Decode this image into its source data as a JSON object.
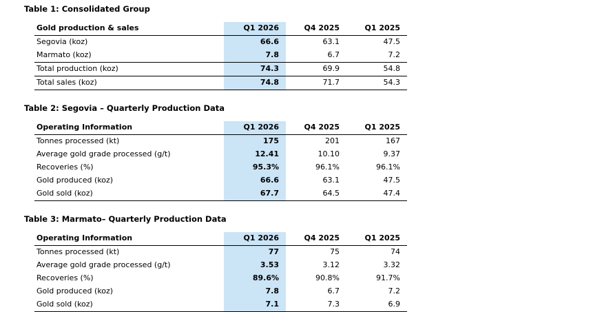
{
  "page": {
    "background": "#ffffff",
    "highlight_color": "#cbe4f6"
  },
  "tables": [
    {
      "title": "Table 1: Consolidated Group",
      "columns": [
        "Gold production & sales",
        "Q1 2026",
        "Q4 2025",
        "Q1 2025"
      ],
      "rows": [
        {
          "label": "Segovia (koz)",
          "values": [
            "66.6",
            "63.1",
            "47.5"
          ]
        },
        {
          "label": "Marmato (koz)",
          "values": [
            "7.8",
            "6.7",
            "7.2"
          ]
        },
        {
          "label": "Total production (koz)",
          "values": [
            "74.3",
            "69.9",
            "54.8"
          ]
        },
        {
          "label": "Total sales (koz)",
          "values": [
            "74.8",
            "71.7",
            "54.3"
          ]
        }
      ]
    },
    {
      "title": "Table 2: Segovia – Quarterly Production Data",
      "columns": [
        "Operating Information",
        "Q1 2026",
        "Q4 2025",
        "Q1 2025"
      ],
      "rows": [
        {
          "label": "Tonnes processed (kt)",
          "values": [
            "175",
            "201",
            "167"
          ]
        },
        {
          "label": "Average gold grade processed (g/t)",
          "values": [
            "12.41",
            "10.10",
            "9.37"
          ]
        },
        {
          "label": "Recoveries (%)",
          "values": [
            "95.3%",
            "96.1%",
            "96.1%"
          ]
        },
        {
          "label": "Gold produced (koz)",
          "values": [
            "66.6",
            "63.1",
            "47.5"
          ]
        },
        {
          "label": "Gold sold (koz)",
          "values": [
            "67.7",
            "64.5",
            "47.4"
          ]
        }
      ]
    },
    {
      "title": "Table 3: Marmato– Quarterly Production Data",
      "columns": [
        "Operating Information",
        "Q1 2026",
        "Q4 2025",
        "Q1 2025"
      ],
      "rows": [
        {
          "label": "Tonnes processed (kt)",
          "values": [
            "77",
            "75",
            "74"
          ]
        },
        {
          "label": "Average gold grade processed (g/t)",
          "values": [
            "3.53",
            "3.12",
            "3.32"
          ]
        },
        {
          "label": "Recoveries (%)",
          "values": [
            "89.6%",
            "90.8%",
            "91.7%"
          ]
        },
        {
          "label": "Gold produced (koz)",
          "values": [
            "7.8",
            "6.7",
            "7.2"
          ]
        },
        {
          "label": "Gold sold (koz)",
          "values": [
            "7.1",
            "7.3",
            "6.9"
          ]
        }
      ]
    }
  ]
}
